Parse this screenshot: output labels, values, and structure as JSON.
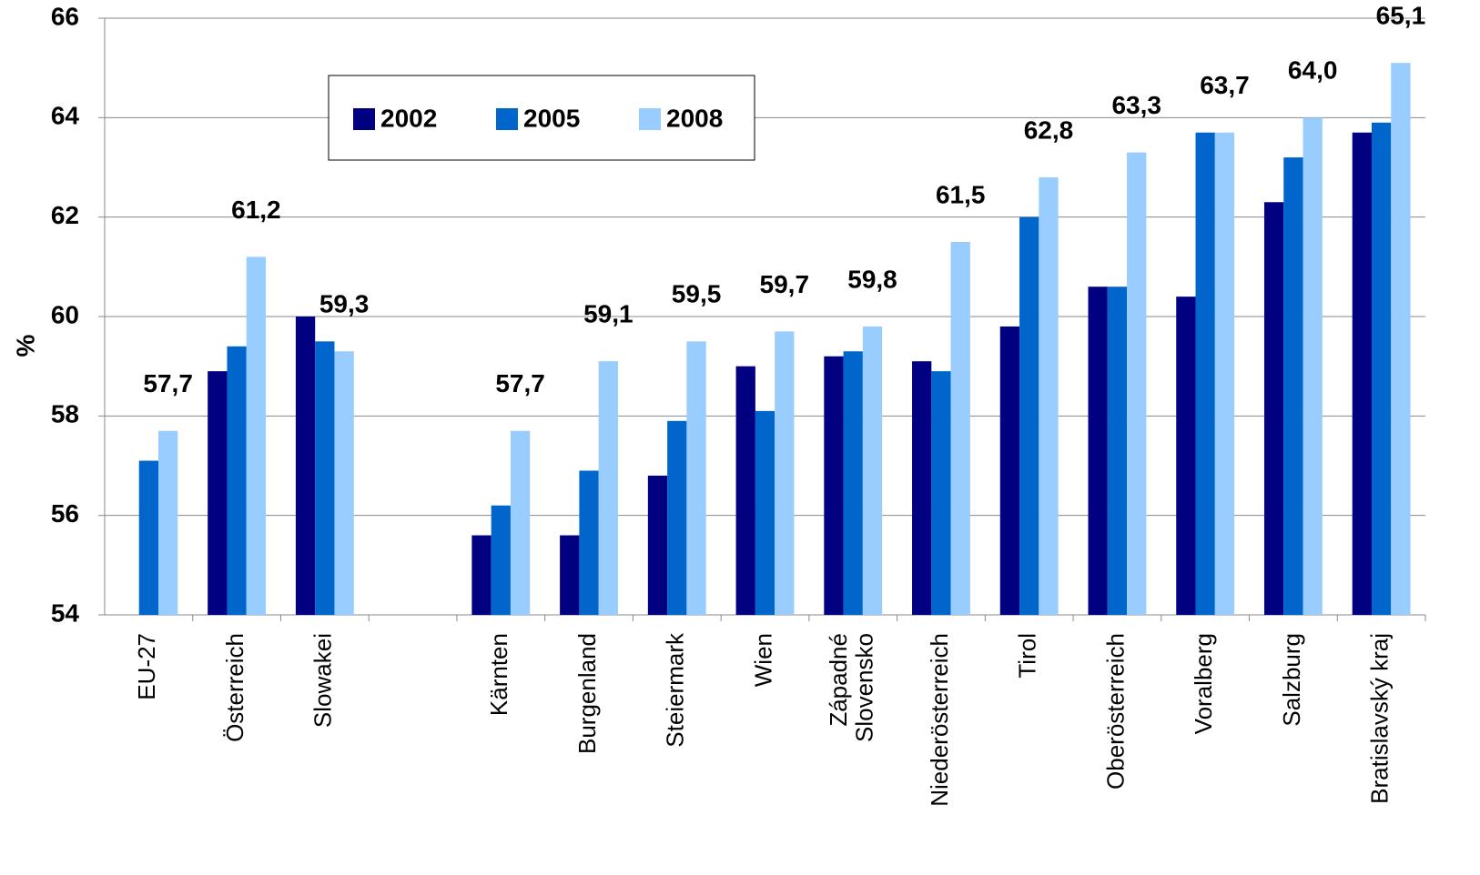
{
  "chart_data": {
    "type": "bar",
    "y_label": "%",
    "categories": [
      "EU-27",
      "Österreich",
      "Slowakei",
      null,
      "Kärnten",
      "Burgenland",
      "Steiermark",
      "Wien",
      "Západné\nSlovensko",
      "Niederösterreich",
      "Tirol",
      "Oberösterreich",
      "Voralberg",
      "Salzburg",
      "Bratislavský kraj"
    ],
    "series": [
      {
        "name": "2002",
        "color": "#000080",
        "values": [
          null,
          58.9,
          60.0,
          null,
          55.6,
          55.6,
          56.8,
          59.0,
          59.2,
          59.1,
          59.8,
          60.6,
          60.4,
          62.3,
          63.7
        ]
      },
      {
        "name": "2005",
        "color": "#0066cc",
        "values": [
          57.1,
          59.4,
          59.5,
          null,
          56.2,
          56.9,
          57.9,
          58.1,
          59.3,
          58.9,
          62.0,
          60.6,
          63.7,
          63.2,
          63.9
        ]
      },
      {
        "name": "2008",
        "color": "#99ccff",
        "values": [
          57.7,
          61.2,
          59.3,
          null,
          57.7,
          59.1,
          59.5,
          59.7,
          59.8,
          61.5,
          62.8,
          63.3,
          63.7,
          64.0,
          65.1
        ],
        "value_labels": [
          "57,7",
          "61,2",
          "59,3",
          null,
          "57,7",
          "59,1",
          "59,5",
          "59,7",
          "59,8",
          "61,5",
          "62,8",
          "63,3",
          "63,7",
          "64,0",
          "65,1"
        ]
      }
    ],
    "ylim": [
      54,
      66
    ],
    "yticks": [
      54,
      56,
      58,
      60,
      62,
      64,
      66
    ],
    "grid": true,
    "legend": "top"
  }
}
